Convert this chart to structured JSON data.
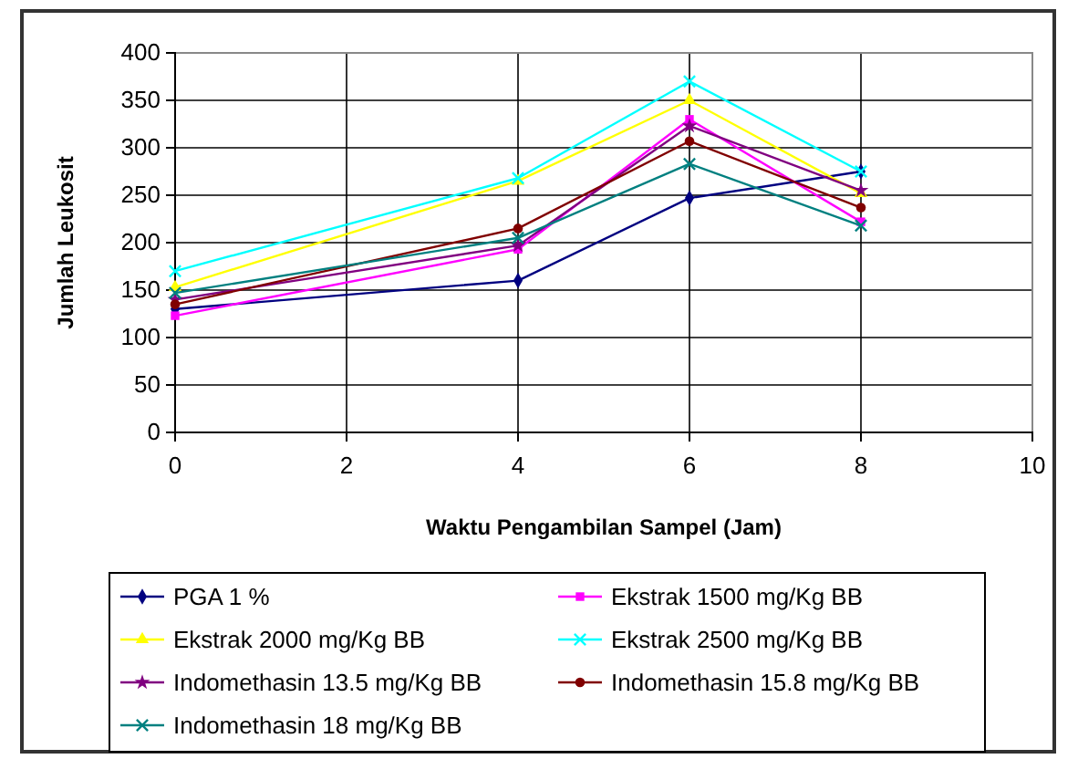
{
  "chart_data": {
    "type": "line",
    "xlabel": "Waktu Pengambilan Sampel (Jam)",
    "ylabel": "Jumlah Leukosit",
    "x": [
      0,
      4,
      6,
      8
    ],
    "xlim": [
      0,
      10
    ],
    "xticks": [
      0,
      2,
      4,
      6,
      8,
      10
    ],
    "ylim": [
      0,
      400
    ],
    "yticks": [
      0,
      50,
      100,
      150,
      200,
      250,
      300,
      350,
      400
    ],
    "grid": true,
    "legend": "bottom",
    "series": [
      {
        "name": "PGA 1 %",
        "color": "#000080",
        "marker": "diamond",
        "values": [
          130,
          160,
          247,
          275
        ]
      },
      {
        "name": "Ekstrak 1500 mg/Kg BB",
        "color": "#ff00ff",
        "marker": "square",
        "values": [
          123,
          193,
          330,
          222
        ]
      },
      {
        "name": "Ekstrak 2000 mg/Kg BB",
        "color": "#ffff00",
        "marker": "triangle",
        "values": [
          153,
          265,
          350,
          252
        ]
      },
      {
        "name": "Ekstrak 2500 mg/Kg BB",
        "color": "#00ffff",
        "marker": "cross",
        "values": [
          170,
          268,
          370,
          275
        ]
      },
      {
        "name": "Indomethasin 13.5 mg/Kg BB",
        "color": "#800080",
        "marker": "star",
        "values": [
          140,
          197,
          323,
          255
        ]
      },
      {
        "name": "Indomethasin 15.8 mg/Kg BB",
        "color": "#800000",
        "marker": "circle",
        "values": [
          135,
          215,
          307,
          237
        ]
      },
      {
        "name": "Indomethasin 18 mg/Kg BB",
        "color": "#008080",
        "marker": "cross",
        "values": [
          147,
          205,
          283,
          218
        ]
      }
    ]
  }
}
